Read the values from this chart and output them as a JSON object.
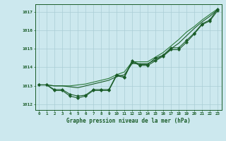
{
  "title": "Graphe pression niveau de la mer (hPa)",
  "bg_color": "#cce8ee",
  "grid_color": "#aacdd5",
  "line_color_dark": "#1a5c28",
  "line_color_med": "#2a7a3a",
  "xlim": [
    -0.5,
    23.5
  ],
  "ylim": [
    1011.7,
    1017.4
  ],
  "yticks": [
    1012,
    1013,
    1014,
    1015,
    1016,
    1017
  ],
  "xticks": [
    0,
    1,
    2,
    3,
    4,
    5,
    6,
    7,
    8,
    9,
    10,
    11,
    12,
    13,
    14,
    15,
    16,
    17,
    18,
    19,
    20,
    21,
    22,
    23
  ],
  "smooth_high": [
    1013.05,
    1013.05,
    1013.0,
    1013.0,
    1013.0,
    1013.05,
    1013.1,
    1013.2,
    1013.3,
    1013.4,
    1013.6,
    1013.75,
    1014.3,
    1014.3,
    1014.3,
    1014.55,
    1014.8,
    1015.15,
    1015.5,
    1015.9,
    1016.2,
    1016.55,
    1016.85,
    1017.15
  ],
  "smooth_low": [
    1013.05,
    1013.05,
    1013.0,
    1013.0,
    1012.95,
    1012.9,
    1013.0,
    1013.1,
    1013.2,
    1013.3,
    1013.5,
    1013.6,
    1014.2,
    1014.2,
    1014.2,
    1014.4,
    1014.65,
    1015.0,
    1015.3,
    1015.7,
    1016.1,
    1016.45,
    1016.75,
    1017.1
  ],
  "marker_high": [
    1013.05,
    1013.05,
    1012.8,
    1012.8,
    1012.55,
    1012.45,
    1012.5,
    1012.8,
    1012.8,
    1012.8,
    1013.6,
    1013.5,
    1014.35,
    1014.15,
    1014.15,
    1014.5,
    1014.65,
    1015.05,
    1015.05,
    1015.45,
    1015.85,
    1016.35,
    1016.55,
    1017.15
  ],
  "marker_low": [
    1013.05,
    1013.05,
    1012.75,
    1012.75,
    1012.45,
    1012.35,
    1012.45,
    1012.75,
    1012.75,
    1012.75,
    1013.55,
    1013.45,
    1014.3,
    1014.1,
    1014.1,
    1014.35,
    1014.6,
    1014.95,
    1014.95,
    1015.35,
    1015.8,
    1016.3,
    1016.5,
    1017.05
  ]
}
